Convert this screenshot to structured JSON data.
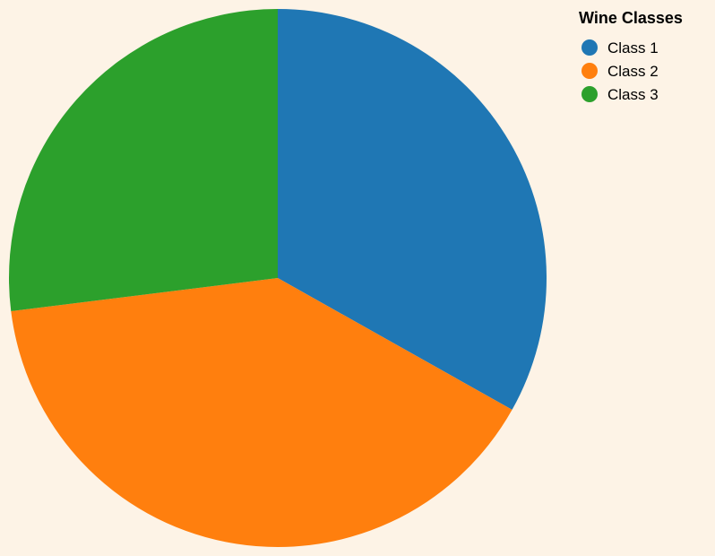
{
  "chart_data": {
    "type": "pie",
    "title": "",
    "legend": {
      "title": "Wine Classes",
      "placement": "top-right"
    },
    "categories": [
      "Class 1",
      "Class 2",
      "Class 3"
    ],
    "values": [
      59,
      71,
      48
    ],
    "colors": [
      "#1f77b4",
      "#ff7f0e",
      "#2ca02c"
    ],
    "start_angle_deg": 0,
    "direction": "clockwise"
  },
  "background_color": "#fdf3e6"
}
